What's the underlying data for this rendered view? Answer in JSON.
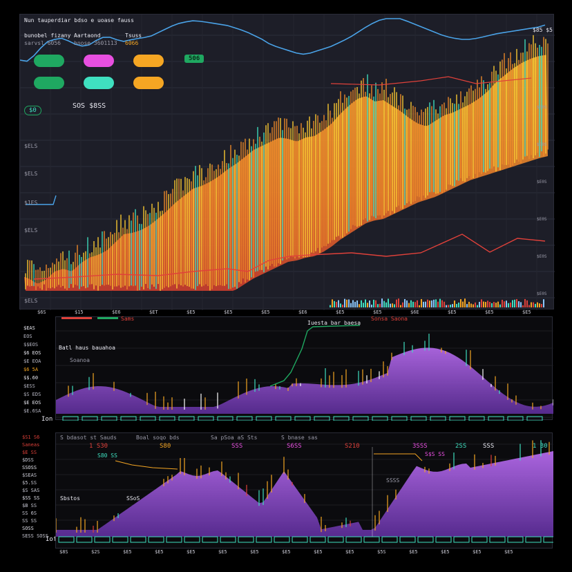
{
  "top": {
    "title": "Nun tauperdiar bdso e uoase fauss",
    "legend": [
      {
        "head": "bunobel fizany",
        "sub": "sarvsl 6056"
      },
      {
        "head": "Aartaond",
        "sub": "hnose 3601113"
      },
      {
        "head": "Tsuss",
        "sub": "6066"
      }
    ],
    "corner": "$85 $5",
    "center": "SOS $8SS",
    "badge": "506",
    "small_badge": "$0",
    "left_labels": [
      "$ELS",
      "$ELS",
      "$1ES",
      "$ELS"
    ],
    "bottom_left": "$ELS",
    "x_ticks": [
      "$6S",
      "$15",
      "$E6",
      "$ET",
      "$E5",
      "$E5",
      "$E5",
      "$E6",
      "$E5",
      "$E5",
      "$6E",
      "$E5",
      "$E5",
      "$E5"
    ],
    "right_ticks": [
      "$E0S",
      "$E0S",
      "$E0S",
      "$E0S",
      "$E0S",
      "$E0S",
      "$E0S"
    ],
    "colors": {
      "gold": "#f5a623",
      "blue": "#4aa3e8",
      "red": "#e0413a",
      "teal": "#3fe0c0",
      "green": "#1fa861",
      "magenta": "#e84fe0"
    }
  },
  "mid": {
    "legend_red": "Sonsa Saona",
    "legend_label": "Sams",
    "top_tag": "Iuesta bar baesa",
    "inner_title": "Batl haus bauahoa",
    "inner_sub": "Soanoa",
    "y_labels": [
      "$EAS",
      "EOS",
      "$$EOS",
      "$6 EOS",
      "$E EOA",
      "$6 5A",
      "$$.60",
      "$ESS",
      "$S EDS",
      "$E EOS",
      "$E.6SA"
    ],
    "x_left": "Ion"
  },
  "low": {
    "y_labels": [
      "$S1 S6",
      "Saneas",
      "$E SS",
      "$DSS",
      "SSOSS",
      "$SEAS",
      "$5.SS",
      "$S SAS",
      "$SS SS",
      "$B SS",
      "SS 6S",
      "SS SS",
      "SOSS",
      "SESS SOSS"
    ],
    "hdr": [
      "S bdasot st Sauds",
      "Boal soqo bds",
      "Sa pSoa aS Sts",
      "S bnase sas"
    ],
    "values": [
      "1 S30",
      "S80",
      "SSS",
      "S6SS",
      "S210",
      "3SSS",
      "2SS",
      "SSS",
      "1 30"
    ],
    "legend2": "S80 SS",
    "legend3": "S$S SS",
    "inner_a": "Sbstos",
    "inner_b": "SSoS",
    "inner_c": "SSSS",
    "x_left": "Iof",
    "x_ticks": [
      "$8S",
      "$2S",
      "$E5",
      "$E5",
      "$E5",
      "$E5",
      "$E5",
      "$E5",
      "$E5",
      "$E5",
      "$5S",
      "$E5",
      "$E5",
      "$E5",
      "$E5"
    ]
  },
  "chart_data": [
    {
      "type": "area",
      "series": [
        {
          "values": [
            378,
            382,
            390,
            384,
            372,
            368,
            372,
            360,
            352,
            348,
            342,
            330,
            318,
            316,
            312,
            305,
            295,
            284,
            272,
            262,
            252,
            248,
            242,
            234,
            224,
            216,
            206,
            196,
            190,
            184,
            178,
            180,
            184,
            178,
            176,
            168,
            158,
            144,
            132,
            122,
            118,
            126,
            124,
            132,
            140,
            150,
            158,
            162,
            154,
            146,
            142,
            136,
            130,
            122,
            112,
            98,
            88,
            78,
            70,
            64,
            60,
            58
          ]
        },
        {
          "values": [
            60,
            62,
            48,
            34,
            30,
            28,
            35,
            40,
            38,
            30,
            25,
            30,
            33,
            30,
            28,
            26,
            20,
            14,
            8,
            5,
            3,
            4,
            6,
            8,
            10,
            14,
            18,
            24,
            30,
            38,
            42,
            46,
            50,
            52,
            48,
            44,
            40,
            34,
            28,
            20,
            12,
            5,
            0,
            0,
            0,
            5,
            10,
            15,
            20,
            25,
            28,
            30,
            30,
            28,
            25,
            22,
            20,
            18,
            16,
            14,
            12,
            8
          ]
        },
        {
          "values": [
            500,
            505,
            520,
            512,
            500,
            498,
            505,
            515,
            510,
            500,
            495,
            498,
            492,
            486,
            478,
            470,
            460,
            452,
            448,
            440,
            432,
            428,
            420,
            412,
            404,
            398,
            390,
            382,
            376,
            370,
            364,
            358,
            356,
            352,
            350,
            344,
            336,
            326,
            318,
            310,
            302,
            298,
            296,
            290,
            284,
            278,
            272,
            268,
            264,
            258,
            252,
            246,
            240,
            236,
            232,
            228,
            224,
            220,
            216,
            212,
            208,
            205
          ]
        }
      ]
    },
    {
      "type": "line",
      "series": [
        {
          "values": [
            230,
            228,
            220,
            175,
            178,
            170,
            162,
            150,
            142,
            120,
            88,
            86,
            70,
            60,
            58,
            52,
            50,
            48
          ]
        },
        {
          "values": [
            382,
            380,
            376,
            372,
            370,
            368,
            366,
            370,
            372,
            370,
            362,
            350,
            340,
            340,
            346,
            345,
            348,
            350,
            348,
            350
          ]
        }
      ]
    }
  ]
}
